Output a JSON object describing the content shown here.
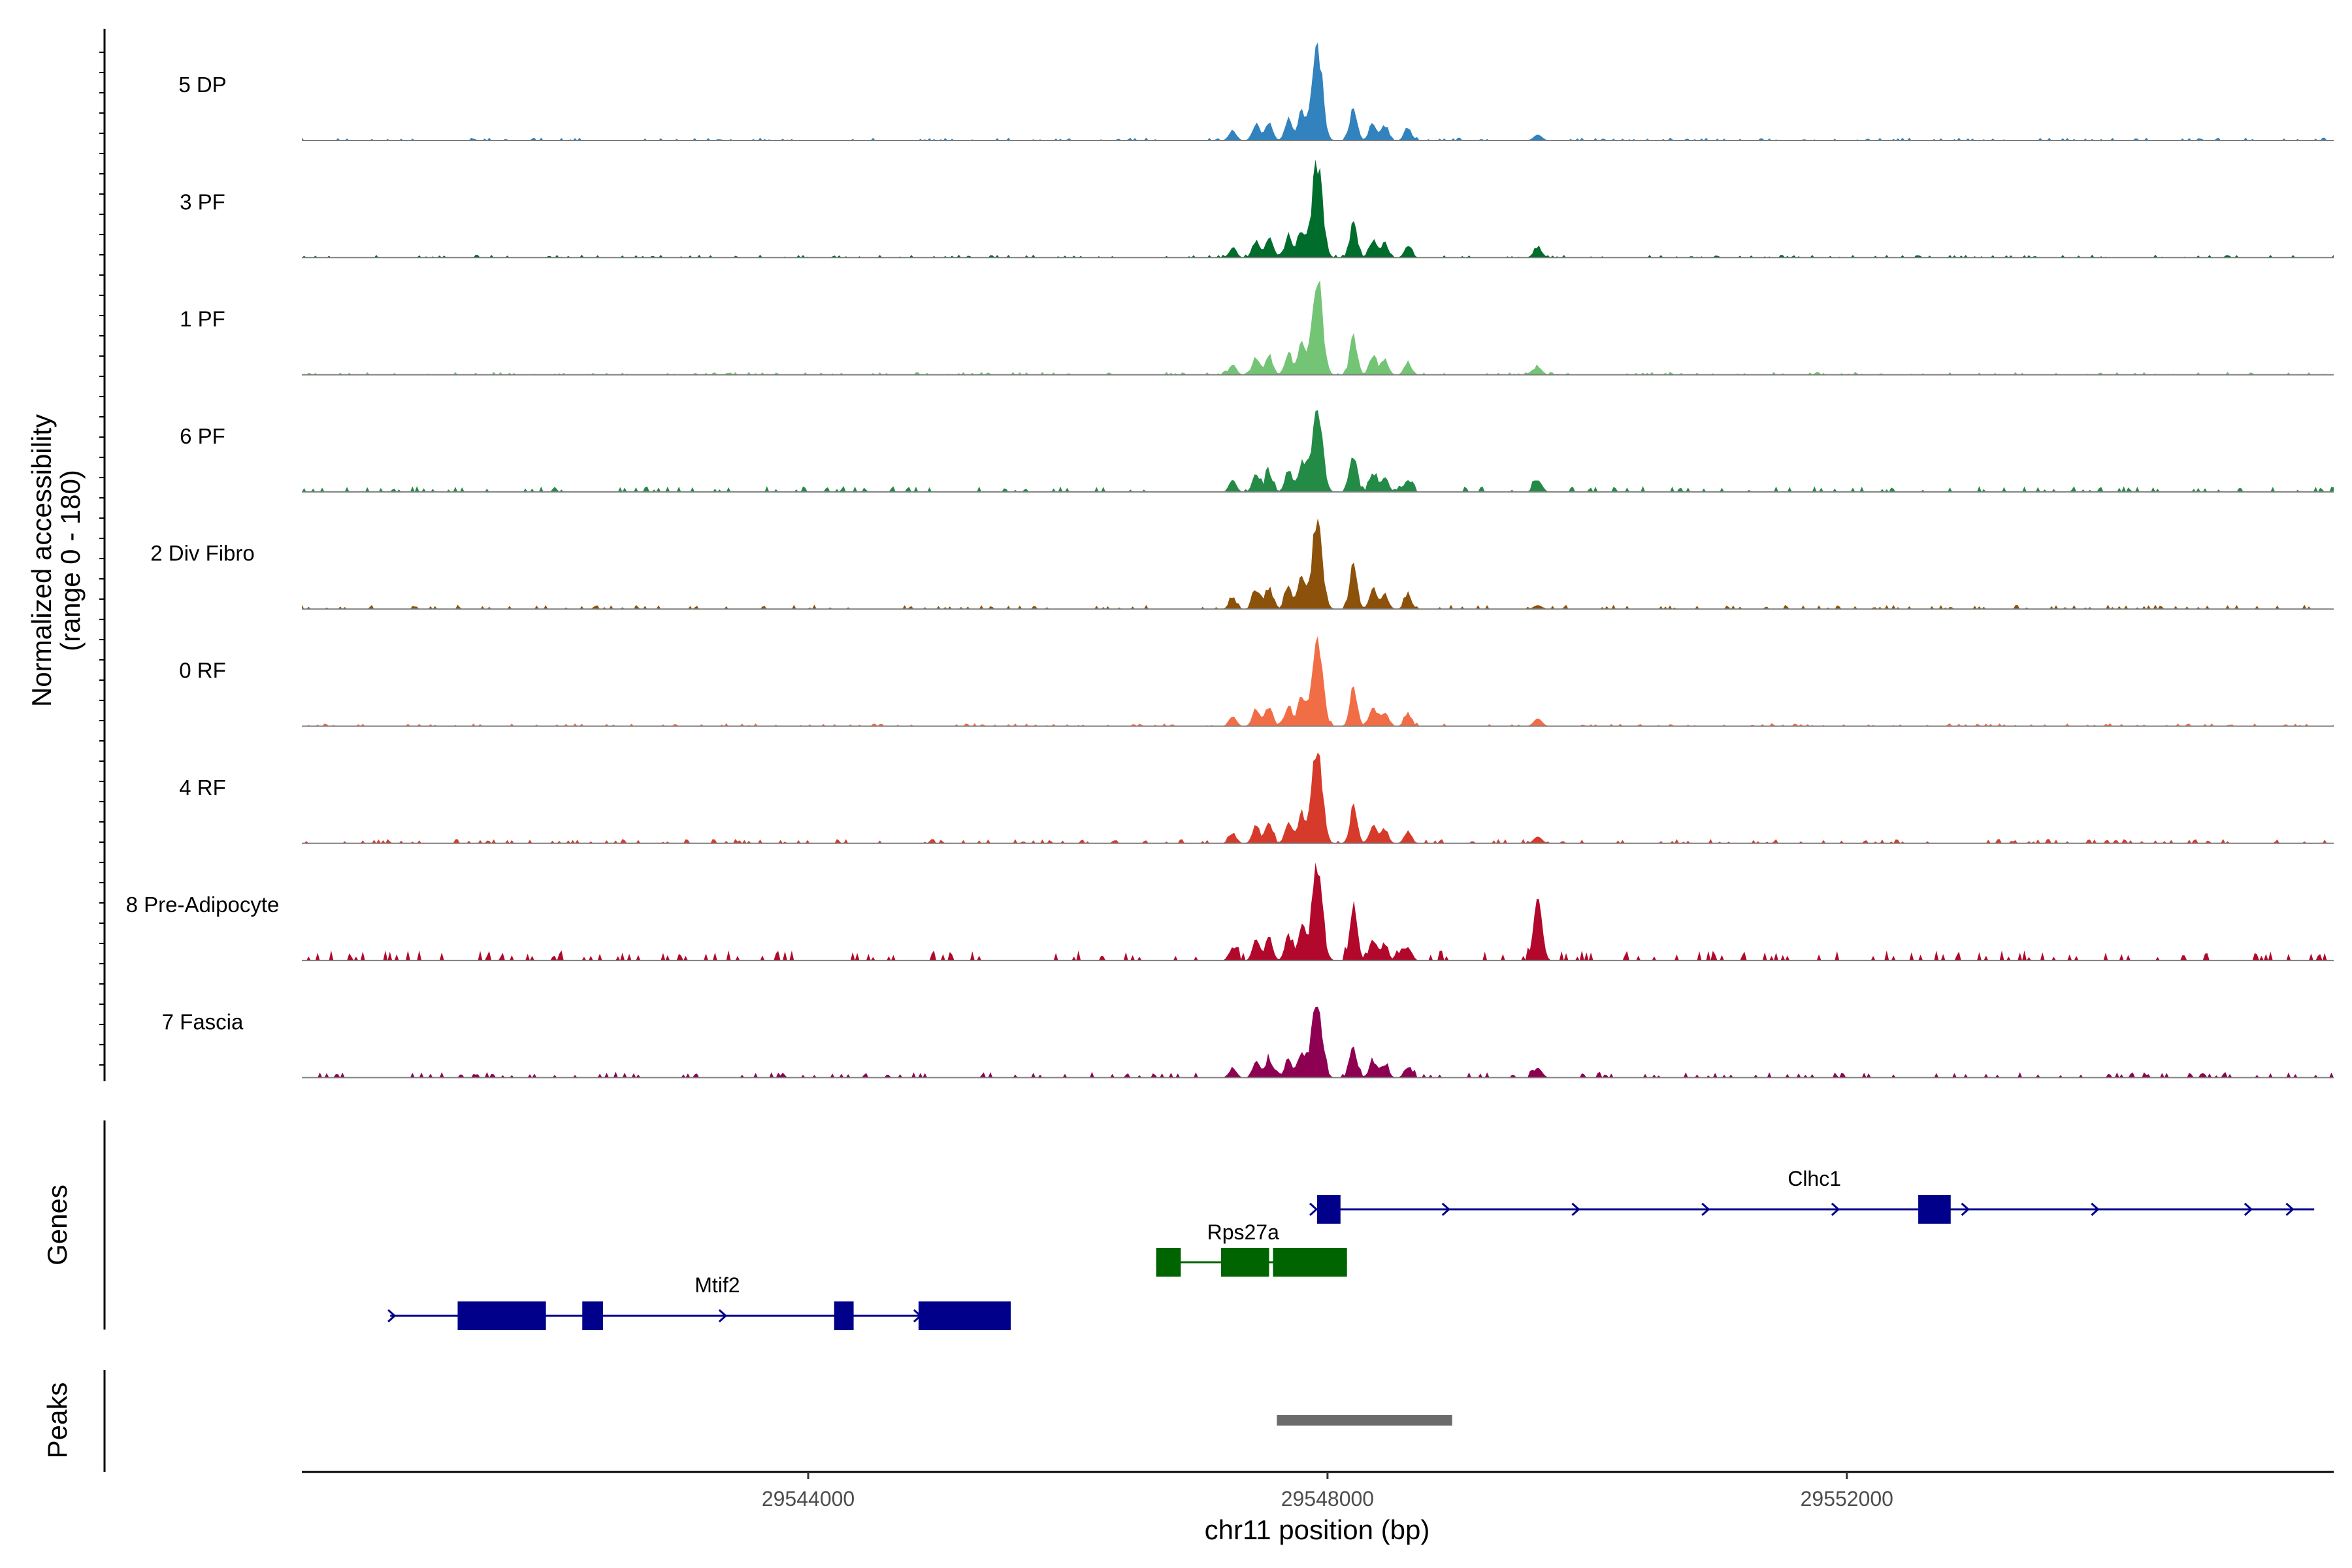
{
  "chart_data": {
    "type": "area",
    "title": "",
    "ylabel": "Normalized accessibility",
    "ylabel_range": "(range 0 - 180)",
    "ylim": [
      0,
      180
    ],
    "xlabel": "chr11 position (bp)",
    "xlim": [
      29540100,
      29555750
    ],
    "x_ticks": [
      29544000,
      29548000,
      29552000
    ],
    "x_tick_labels": [
      "29544000",
      "29548000",
      "29552000"
    ],
    "peak_shape_summits": [
      {
        "pos": 29547270,
        "rel": 0.1
      },
      {
        "pos": 29547450,
        "rel": 0.17
      },
      {
        "pos": 29547550,
        "rel": 0.19
      },
      {
        "pos": 29547700,
        "rel": 0.2
      },
      {
        "pos": 29547800,
        "rel": 0.28
      },
      {
        "pos": 29547920,
        "rel": 1.0
      },
      {
        "pos": 29548200,
        "rel": 0.35
      },
      {
        "pos": 29548350,
        "rel": 0.18
      },
      {
        "pos": 29548440,
        "rel": 0.14
      },
      {
        "pos": 29548620,
        "rel": 0.12
      },
      {
        "pos": 29549620,
        "rel": 0.08
      }
    ],
    "series": [
      {
        "name": "5 DP",
        "color": "#3182bd",
        "peak": 1.0,
        "secondary": 0.35,
        "distal": 0.06,
        "background": 0.02
      },
      {
        "name": "3 PF",
        "color": "#006d2c",
        "peak": 1.0,
        "secondary": 0.35,
        "distal": 0.1,
        "background": 0.02
      },
      {
        "name": "1 PF",
        "color": "#74c476",
        "peak": 1.0,
        "secondary": 0.4,
        "distal": 0.08,
        "background": 0.02
      },
      {
        "name": "6 PF",
        "color": "#238b45",
        "peak": 0.95,
        "secondary": 0.4,
        "distal": 0.12,
        "background": 0.04
      },
      {
        "name": "2 Div Fibro",
        "color": "#8c510a",
        "peak": 0.9,
        "secondary": 0.45,
        "distal": 0.04,
        "background": 0.03
      },
      {
        "name": "0 RF",
        "color": "#f16d46",
        "peak": 1.0,
        "secondary": 0.4,
        "distal": 0.08,
        "background": 0.02
      },
      {
        "name": "4 RF",
        "color": "#d63a2b",
        "peak": 1.0,
        "secondary": 0.38,
        "distal": 0.07,
        "background": 0.03
      },
      {
        "name": "8 Pre-Adipocyte",
        "color": "#b1082b",
        "peak": 1.0,
        "secondary": 0.55,
        "distal": 0.65,
        "background": 0.07
      },
      {
        "name": "7 Fascia",
        "color": "#8e0152",
        "peak": 0.75,
        "secondary": 0.3,
        "distal": 0.1,
        "background": 0.04
      }
    ],
    "genes_title": "Genes",
    "genes": [
      {
        "name": "Clhc1",
        "color": "#00008b",
        "start": 29547920,
        "end": 29555600,
        "strand": "+",
        "exons": [
          [
            29547920,
            29548100
          ],
          [
            29552550,
            29552800
          ]
        ],
        "arrows": [
          29547900,
          29548920,
          29549920,
          29550920,
          29551920,
          29552920,
          29553920,
          29555100,
          29555420
        ]
      },
      {
        "name": "Rps27a",
        "color": "#006400",
        "start": 29546680,
        "end": 29548150,
        "strand": "+",
        "exons": [
          [
            29546680,
            29546870
          ],
          [
            29547180,
            29547550
          ],
          [
            29547580,
            29548150
          ]
        ],
        "arrows": []
      },
      {
        "name": "Mtif2",
        "color": "#00008b",
        "start": 29540780,
        "end": 29545560,
        "strand": "+",
        "exons": [
          [
            29541300,
            29541980
          ],
          [
            29542260,
            29542420
          ],
          [
            29544200,
            29544350
          ],
          [
            29544850,
            29545560
          ]
        ],
        "arrows": [
          29540800,
          29543350,
          29544270,
          29544850
        ]
      }
    ],
    "peaks_title": "Peaks",
    "peaks": [
      [
        29547610,
        29548960
      ]
    ]
  }
}
